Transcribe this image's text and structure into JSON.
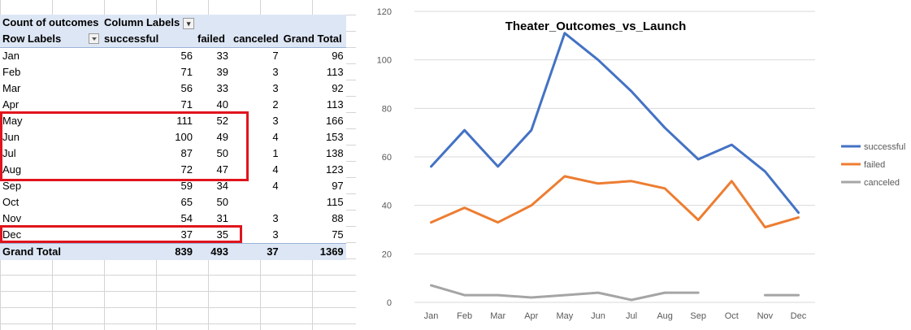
{
  "pivot": {
    "corner_label": "Count of outcomes",
    "column_labels": "Column Labels",
    "row_labels": "Row Labels",
    "headers": [
      "successful",
      "failed",
      "canceled",
      "Grand Total"
    ],
    "rows": [
      {
        "label": "Jan",
        "successful": "56",
        "failed": "33",
        "canceled": "7",
        "total": "96"
      },
      {
        "label": "Feb",
        "successful": "71",
        "failed": "39",
        "canceled": "3",
        "total": "113"
      },
      {
        "label": "Mar",
        "successful": "56",
        "failed": "33",
        "canceled": "3",
        "total": "92"
      },
      {
        "label": "Apr",
        "successful": "71",
        "failed": "40",
        "canceled": "2",
        "total": "113"
      },
      {
        "label": "May",
        "successful": "111",
        "failed": "52",
        "canceled": "3",
        "total": "166"
      },
      {
        "label": "Jun",
        "successful": "100",
        "failed": "49",
        "canceled": "4",
        "total": "153"
      },
      {
        "label": "Jul",
        "successful": "87",
        "failed": "50",
        "canceled": "1",
        "total": "138"
      },
      {
        "label": "Aug",
        "successful": "72",
        "failed": "47",
        "canceled": "4",
        "total": "123"
      },
      {
        "label": "Sep",
        "successful": "59",
        "failed": "34",
        "canceled": "4",
        "total": "97"
      },
      {
        "label": "Oct",
        "successful": "65",
        "failed": "50",
        "canceled": "",
        "total": "115"
      },
      {
        "label": "Nov",
        "successful": "54",
        "failed": "31",
        "canceled": "3",
        "total": "88"
      },
      {
        "label": "Dec",
        "successful": "37",
        "failed": "35",
        "canceled": "3",
        "total": "75"
      }
    ],
    "grand_total": {
      "label": "Grand Total",
      "successful": "839",
      "failed": "493",
      "canceled": "37",
      "total": "1369"
    }
  },
  "highlight_color": "#e0141c",
  "chart_data": {
    "type": "line",
    "title": "Theater_Outcomes_vs_Launch",
    "xlabel": "",
    "ylabel": "",
    "categories": [
      "Jan",
      "Feb",
      "Mar",
      "Apr",
      "May",
      "Jun",
      "Jul",
      "Aug",
      "Sep",
      "Oct",
      "Nov",
      "Dec"
    ],
    "ylim": [
      0,
      120
    ],
    "yticks": [
      0,
      20,
      40,
      60,
      80,
      100,
      120
    ],
    "grid": true,
    "legend_position": "right",
    "series": [
      {
        "name": "successful",
        "color": "#4472c4",
        "values": [
          56,
          71,
          56,
          71,
          111,
          100,
          87,
          72,
          59,
          65,
          54,
          37
        ]
      },
      {
        "name": "failed",
        "color": "#ed7d31",
        "values": [
          33,
          39,
          33,
          40,
          52,
          49,
          50,
          47,
          34,
          50,
          31,
          35
        ]
      },
      {
        "name": "canceled",
        "color": "#a5a5a5",
        "values": [
          7,
          3,
          3,
          2,
          3,
          4,
          1,
          4,
          4,
          null,
          3,
          3
        ]
      }
    ]
  }
}
